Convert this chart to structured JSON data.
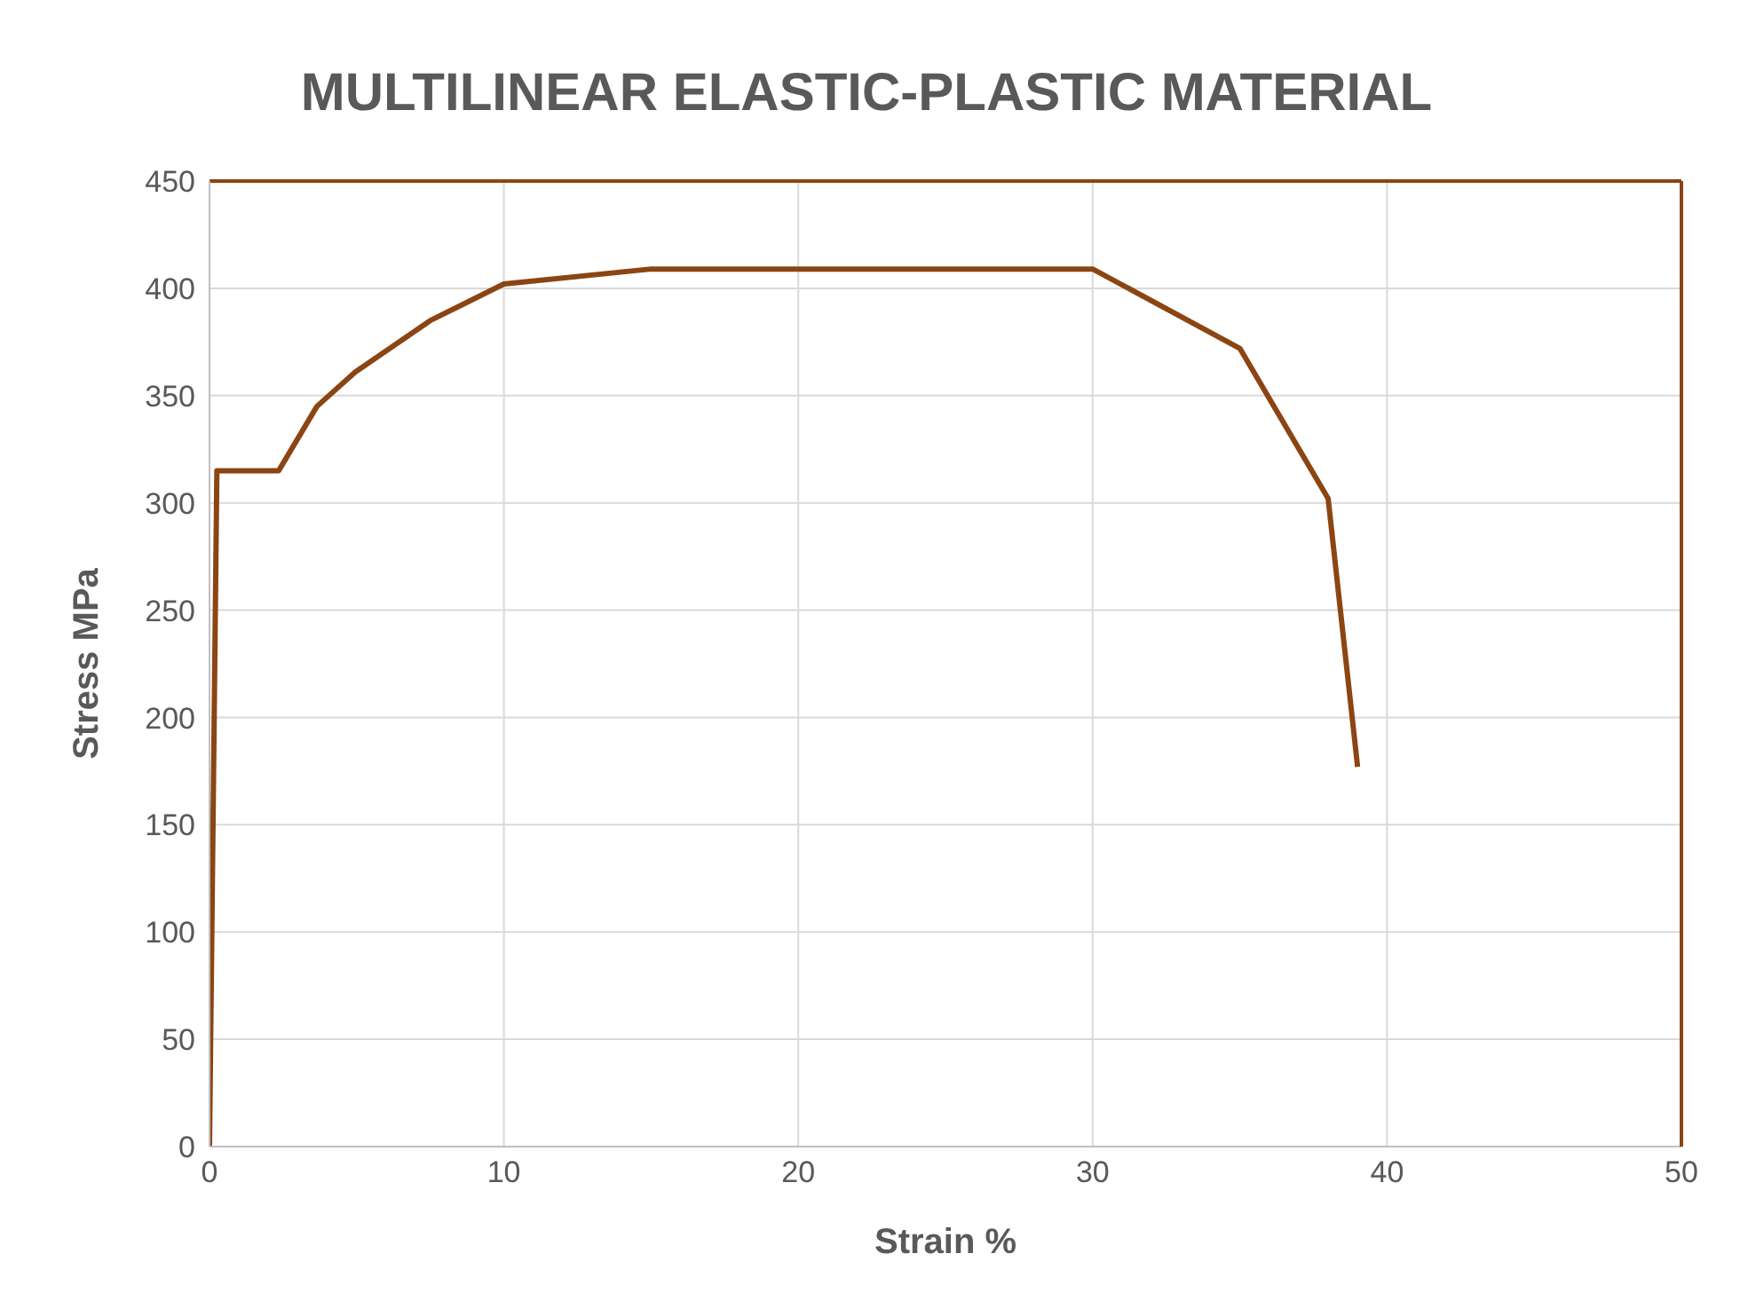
{
  "chart_data": {
    "type": "line",
    "title": "MULTILINEAR ELASTIC-PLASTIC MATERIAL",
    "xlabel": "Strain %",
    "ylabel": "Stress MPa",
    "x": [
      0,
      0.25,
      2.35,
      3.65,
      4.95,
      7.5,
      10,
      15,
      30,
      35,
      38,
      39
    ],
    "series": [
      {
        "color": "#8b4513",
        "values": [
          0,
          315,
          315,
          345,
          361,
          385,
          402,
          409,
          409,
          372,
          302,
          177
        ]
      }
    ],
    "xlim": [
      0,
      50
    ],
    "xticks": [
      0,
      10,
      20,
      30,
      40,
      50
    ],
    "ylim": [
      0,
      450
    ],
    "yticks": [
      0,
      50,
      100,
      150,
      200,
      250,
      300,
      350,
      400,
      450
    ],
    "grid": true,
    "marker": "none",
    "line_style": "solid"
  }
}
